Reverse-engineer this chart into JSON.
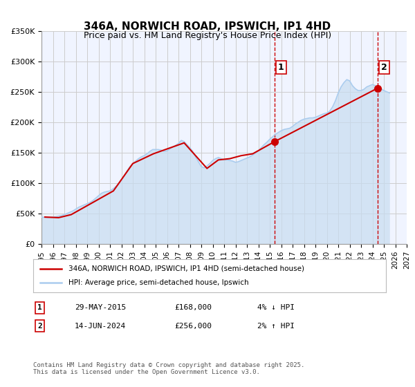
{
  "title": "346A, NORWICH ROAD, IPSWICH, IP1 4HD",
  "subtitle": "Price paid vs. HM Land Registry's House Price Index (HPI)",
  "xlabel": "",
  "ylabel": "",
  "ylim": [
    0,
    350000
  ],
  "xlim": [
    1995,
    2027
  ],
  "yticks": [
    0,
    50000,
    100000,
    150000,
    200000,
    250000,
    300000,
    350000
  ],
  "ytick_labels": [
    "£0",
    "£50K",
    "£100K",
    "£150K",
    "£200K",
    "£250K",
    "£300K",
    "£350K"
  ],
  "xticks": [
    1995,
    1996,
    1997,
    1998,
    1999,
    2000,
    2001,
    2002,
    2003,
    2004,
    2005,
    2006,
    2007,
    2008,
    2009,
    2010,
    2011,
    2012,
    2013,
    2014,
    2015,
    2016,
    2017,
    2018,
    2019,
    2020,
    2021,
    2022,
    2023,
    2024,
    2025,
    2026,
    2027
  ],
  "grid_color": "#cccccc",
  "bg_color": "#f0f4ff",
  "plot_bg": "#ffffff",
  "red_line_color": "#cc0000",
  "blue_line_color": "#aaccee",
  "marker1_date": 2015.42,
  "marker1_value": 168000,
  "marker1_label": "1",
  "marker2_date": 2024.46,
  "marker2_value": 256000,
  "marker2_label": "2",
  "vline1_x": 2015.42,
  "vline2_x": 2024.46,
  "legend_entries": [
    "346A, NORWICH ROAD, IPSWICH, IP1 4HD (semi-detached house)",
    "HPI: Average price, semi-detached house, Ipswich"
  ],
  "annotation1": [
    "1",
    "29-MAY-2015",
    "£168,000",
    "4% ↓ HPI"
  ],
  "annotation2": [
    "2",
    "14-JUN-2024",
    "£256,000",
    "2% ↑ HPI"
  ],
  "footer": "Contains HM Land Registry data © Crown copyright and database right 2025.\nThis data is licensed under the Open Government Licence v3.0.",
  "hpi_data_x": [
    1995.0,
    1995.25,
    1995.5,
    1995.75,
    1996.0,
    1996.25,
    1996.5,
    1996.75,
    1997.0,
    1997.25,
    1997.5,
    1997.75,
    1998.0,
    1998.25,
    1998.5,
    1998.75,
    1999.0,
    1999.25,
    1999.5,
    1999.75,
    2000.0,
    2000.25,
    2000.5,
    2000.75,
    2001.0,
    2001.25,
    2001.5,
    2001.75,
    2002.0,
    2002.25,
    2002.5,
    2002.75,
    2003.0,
    2003.25,
    2003.5,
    2003.75,
    2004.0,
    2004.25,
    2004.5,
    2004.75,
    2005.0,
    2005.25,
    2005.5,
    2005.75,
    2006.0,
    2006.25,
    2006.5,
    2006.75,
    2007.0,
    2007.25,
    2007.5,
    2007.75,
    2008.0,
    2008.25,
    2008.5,
    2008.75,
    2009.0,
    2009.25,
    2009.5,
    2009.75,
    2010.0,
    2010.25,
    2010.5,
    2010.75,
    2011.0,
    2011.25,
    2011.5,
    2011.75,
    2012.0,
    2012.25,
    2012.5,
    2012.75,
    2013.0,
    2013.25,
    2013.5,
    2013.75,
    2014.0,
    2014.25,
    2014.5,
    2014.75,
    2015.0,
    2015.25,
    2015.5,
    2015.75,
    2016.0,
    2016.25,
    2016.5,
    2016.75,
    2017.0,
    2017.25,
    2017.5,
    2017.75,
    2018.0,
    2018.25,
    2018.5,
    2018.75,
    2019.0,
    2019.25,
    2019.5,
    2019.75,
    2020.0,
    2020.25,
    2020.5,
    2020.75,
    2021.0,
    2021.25,
    2021.5,
    2021.75,
    2022.0,
    2022.25,
    2022.5,
    2022.75,
    2023.0,
    2023.25,
    2023.5,
    2023.75,
    2024.0,
    2024.25,
    2024.5,
    2024.75,
    2025.0,
    2025.25,
    2025.5
  ],
  "hpi_data_y": [
    44000,
    43500,
    43200,
    43500,
    44000,
    44500,
    45500,
    46500,
    48000,
    50000,
    52000,
    54000,
    57000,
    60000,
    62000,
    64000,
    66000,
    68000,
    71000,
    75000,
    79000,
    83000,
    85000,
    86000,
    87000,
    90000,
    94000,
    98000,
    105000,
    112000,
    120000,
    127000,
    132000,
    136000,
    140000,
    143000,
    145000,
    148000,
    152000,
    155000,
    155000,
    155000,
    154000,
    152000,
    153000,
    156000,
    159000,
    162000,
    165000,
    170000,
    168000,
    163000,
    158000,
    152000,
    143000,
    135000,
    127000,
    125000,
    128000,
    132000,
    137000,
    140000,
    142000,
    140000,
    138000,
    138000,
    137000,
    136000,
    134000,
    135000,
    137000,
    139000,
    141000,
    143000,
    146000,
    149000,
    153000,
    158000,
    163000,
    167000,
    172000,
    176000,
    180000,
    183000,
    186000,
    188000,
    189000,
    190000,
    193000,
    197000,
    200000,
    203000,
    205000,
    206000,
    207000,
    207000,
    208000,
    210000,
    212000,
    214000,
    215000,
    218000,
    225000,
    235000,
    248000,
    258000,
    265000,
    270000,
    268000,
    260000,
    255000,
    252000,
    252000,
    254000,
    258000,
    260000,
    262000,
    260000,
    258000,
    255000,
    252000,
    250000,
    248000
  ],
  "price_paid_x": [
    1995.3,
    1996.5,
    1997.6,
    1999.5,
    2001.3,
    2003.0,
    2004.8,
    2007.5,
    2009.5,
    2010.5,
    2011.5,
    2012.5,
    2013.5,
    2015.42,
    2024.46
  ],
  "price_paid_y": [
    44000,
    43000,
    48000,
    68000,
    87000,
    132000,
    148000,
    166000,
    124000,
    138000,
    140000,
    145000,
    148000,
    168000,
    256000
  ]
}
